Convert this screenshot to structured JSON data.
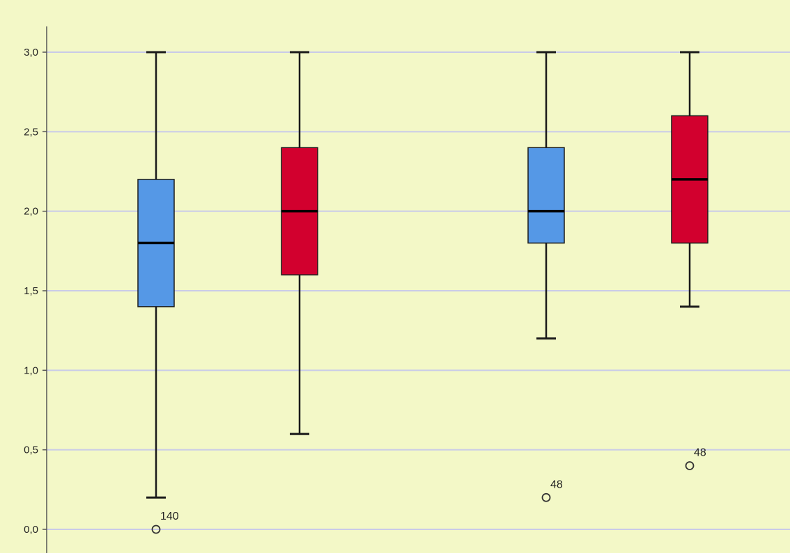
{
  "chart_data": {
    "type": "boxplot",
    "title": "",
    "xlabel": "",
    "ylabel": "",
    "ylim": [
      0,
      3
    ],
    "y_ticks": [
      {
        "value": 0.0,
        "label": "0,0"
      },
      {
        "value": 0.5,
        "label": "0,5"
      },
      {
        "value": 1.0,
        "label": "1,0"
      },
      {
        "value": 1.5,
        "label": "1,5"
      },
      {
        "value": 2.0,
        "label": "2,0"
      },
      {
        "value": 2.5,
        "label": "2,5"
      },
      {
        "value": 3.0,
        "label": "3,0"
      }
    ],
    "grid": true,
    "legend": "none",
    "colors": {
      "background": "#f3f8c7",
      "grid": "#c9cbe8",
      "blue": "#5598e6",
      "red": "#d2002e",
      "outline": "#1a1a1a"
    },
    "boxes": [
      {
        "color": "blue",
        "whisker_low": 0.2,
        "q1": 1.4,
        "median": 1.8,
        "q3": 2.2,
        "whisker_high": 3.0,
        "outliers": [
          {
            "value": 0.0,
            "label": "140"
          }
        ]
      },
      {
        "color": "red",
        "whisker_low": 0.6,
        "q1": 1.6,
        "median": 2.0,
        "q3": 2.4,
        "whisker_high": 3.0,
        "outliers": []
      },
      {
        "color": "blue",
        "whisker_low": 1.2,
        "q1": 1.8,
        "median": 2.0,
        "q3": 2.4,
        "whisker_high": 3.0,
        "outliers": [
          {
            "value": 0.2,
            "label": "48"
          }
        ]
      },
      {
        "color": "red",
        "whisker_low": 1.4,
        "q1": 1.8,
        "median": 2.2,
        "q3": 2.6,
        "whisker_high": 3.0,
        "outliers": [
          {
            "value": 0.4,
            "label": "48"
          }
        ]
      }
    ]
  }
}
